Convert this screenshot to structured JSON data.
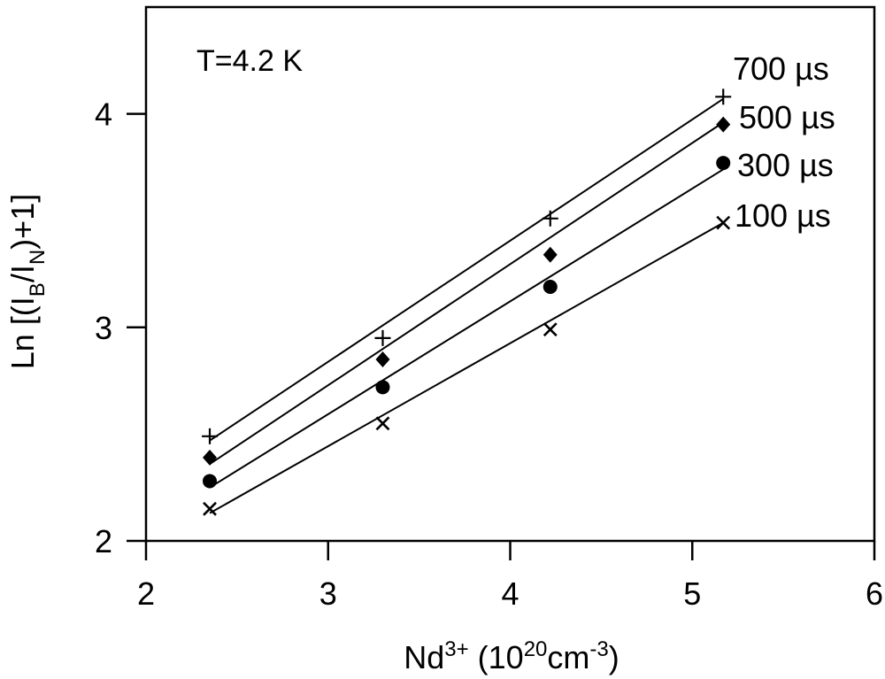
{
  "chart_data": {
    "type": "scatter",
    "title": "",
    "annotation": "T=4.2 K",
    "xlabel": {
      "base": "Nd",
      "sup": "3+",
      "mid": " (10",
      "sup2": "20",
      "tail": "cm",
      "sup3": "-3",
      "end": ")"
    },
    "ylabel": {
      "pre": "Ln  [(I",
      "sub1": "B",
      "mid": "/I",
      "sub2": "N",
      "end": ")+1]"
    },
    "xlim": [
      2,
      6
    ],
    "ylim": [
      2,
      4.5
    ],
    "xticks": [
      2,
      3,
      4,
      5,
      6
    ],
    "yticks": [
      2,
      3,
      4
    ],
    "grid": false,
    "series": [
      {
        "name": "700 µs",
        "marker": "plus",
        "x": [
          2.35,
          3.3,
          4.22,
          5.17
        ],
        "y": [
          2.49,
          2.95,
          3.51,
          4.08
        ],
        "fit": [
          2.47,
          4.07
        ]
      },
      {
        "name": "500 µs",
        "marker": "diamond",
        "x": [
          2.35,
          3.3,
          4.22,
          5.17
        ],
        "y": [
          2.39,
          2.85,
          3.34,
          3.95
        ],
        "fit": [
          2.36,
          3.96
        ]
      },
      {
        "name": "300 µs",
        "marker": "circle",
        "x": [
          2.35,
          3.3,
          4.22,
          5.17
        ],
        "y": [
          2.28,
          2.72,
          3.19,
          3.77
        ],
        "fit": [
          2.25,
          3.74
        ]
      },
      {
        "name": "100 µs",
        "marker": "x",
        "x": [
          2.35,
          3.3,
          4.22,
          5.17
        ],
        "y": [
          2.15,
          2.55,
          2.99,
          3.49
        ],
        "fit": [
          2.13,
          3.49
        ]
      }
    ]
  }
}
